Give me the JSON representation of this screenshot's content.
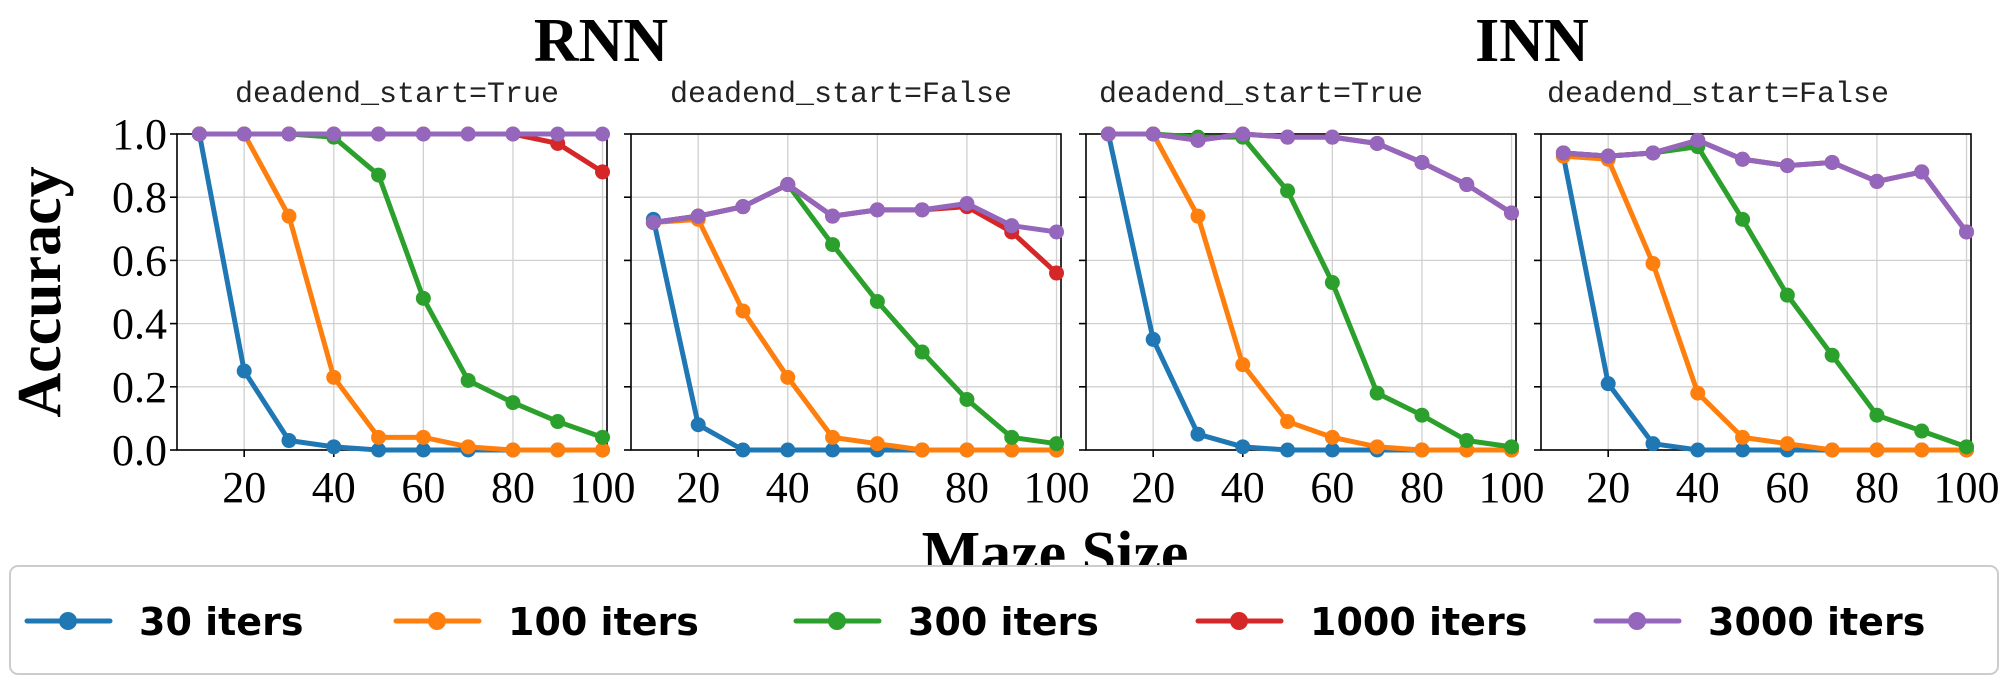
{
  "figure": {
    "group_titles": [
      "RNN",
      "INN"
    ],
    "xlabel": "Maze Size",
    "ylabel": "Accuracy"
  },
  "chart_data": {
    "type": "line",
    "x": [
      10,
      20,
      30,
      40,
      50,
      60,
      70,
      80,
      90,
      100
    ],
    "xticks": [
      20,
      40,
      60,
      80,
      100
    ],
    "yticks": [
      "0.0",
      "0.2",
      "0.4",
      "0.6",
      "0.8",
      "1.0"
    ],
    "xlim": [
      5,
      101
    ],
    "ylim": [
      0,
      1
    ],
    "grid": true,
    "legend_position": "bottom",
    "series_styles": [
      {
        "name": "30 iters",
        "color": "#1f77b4"
      },
      {
        "name": "100 iters",
        "color": "#ff7f0e"
      },
      {
        "name": "300 iters",
        "color": "#2ca02c"
      },
      {
        "name": "1000 iters",
        "color": "#d62728"
      },
      {
        "name": "3000 iters",
        "color": "#9467bd"
      }
    ],
    "panels": [
      {
        "group": "RNN",
        "title": "deadend_start=True",
        "series": [
          {
            "name": "30 iters",
            "values": [
              1.0,
              0.25,
              0.03,
              0.01,
              0.0,
              0.0,
              0.0,
              0.0,
              0.0,
              0.0
            ]
          },
          {
            "name": "100 iters",
            "values": [
              1.0,
              1.0,
              0.74,
              0.23,
              0.04,
              0.04,
              0.01,
              0.0,
              0.0,
              0.0
            ]
          },
          {
            "name": "300 iters",
            "values": [
              1.0,
              1.0,
              1.0,
              0.99,
              0.87,
              0.48,
              0.22,
              0.15,
              0.09,
              0.04
            ]
          },
          {
            "name": "1000 iters",
            "values": [
              1.0,
              1.0,
              1.0,
              1.0,
              1.0,
              1.0,
              1.0,
              1.0,
              0.97,
              0.88
            ]
          },
          {
            "name": "3000 iters",
            "values": [
              1.0,
              1.0,
              1.0,
              1.0,
              1.0,
              1.0,
              1.0,
              1.0,
              1.0,
              1.0
            ]
          }
        ]
      },
      {
        "group": "RNN",
        "title": "deadend_start=False",
        "series": [
          {
            "name": "30 iters",
            "values": [
              0.73,
              0.08,
              0.0,
              0.0,
              0.0,
              0.0,
              0.0,
              0.0,
              0.0,
              0.0
            ]
          },
          {
            "name": "100 iters",
            "values": [
              0.72,
              0.73,
              0.44,
              0.23,
              0.04,
              0.02,
              0.0,
              0.0,
              0.0,
              0.0
            ]
          },
          {
            "name": "300 iters",
            "values": [
              0.72,
              0.74,
              0.77,
              0.84,
              0.65,
              0.47,
              0.31,
              0.16,
              0.04,
              0.02
            ]
          },
          {
            "name": "1000 iters",
            "values": [
              0.72,
              0.74,
              0.77,
              0.84,
              0.74,
              0.76,
              0.76,
              0.77,
              0.69,
              0.56
            ]
          },
          {
            "name": "3000 iters",
            "values": [
              0.72,
              0.74,
              0.77,
              0.84,
              0.74,
              0.76,
              0.76,
              0.78,
              0.71,
              0.69
            ]
          }
        ]
      },
      {
        "group": "INN",
        "title": "deadend_start=True",
        "series": [
          {
            "name": "30 iters",
            "values": [
              1.0,
              0.35,
              0.05,
              0.01,
              0.0,
              0.0,
              0.0,
              0.0,
              0.0,
              0.0
            ]
          },
          {
            "name": "100 iters",
            "values": [
              1.0,
              1.0,
              0.74,
              0.27,
              0.09,
              0.04,
              0.01,
              0.0,
              0.0,
              0.0
            ]
          },
          {
            "name": "300 iters",
            "values": [
              1.0,
              1.0,
              0.99,
              0.99,
              0.82,
              0.53,
              0.18,
              0.11,
              0.03,
              0.01
            ]
          },
          {
            "name": "1000 iters",
            "values": [
              1.0,
              1.0,
              0.98,
              1.0,
              0.99,
              0.99,
              0.97,
              0.91,
              0.84,
              0.75
            ]
          },
          {
            "name": "3000 iters",
            "values": [
              1.0,
              1.0,
              0.98,
              1.0,
              0.99,
              0.99,
              0.97,
              0.91,
              0.84,
              0.75
            ]
          }
        ]
      },
      {
        "group": "INN",
        "title": "deadend_start=False",
        "series": [
          {
            "name": "30 iters",
            "values": [
              0.93,
              0.21,
              0.02,
              0.0,
              0.0,
              0.0,
              0.0,
              0.0,
              0.0,
              0.0
            ]
          },
          {
            "name": "100 iters",
            "values": [
              0.93,
              0.92,
              0.59,
              0.18,
              0.04,
              0.02,
              0.0,
              0.0,
              0.0,
              0.0
            ]
          },
          {
            "name": "300 iters",
            "values": [
              0.94,
              0.93,
              0.94,
              0.96,
              0.73,
              0.49,
              0.3,
              0.11,
              0.06,
              0.01
            ]
          },
          {
            "name": "1000 iters",
            "values": [
              0.94,
              0.93,
              0.94,
              0.98,
              0.92,
              0.9,
              0.91,
              0.85,
              0.88,
              0.69
            ]
          },
          {
            "name": "3000 iters",
            "values": [
              0.94,
              0.93,
              0.94,
              0.98,
              0.92,
              0.9,
              0.91,
              0.85,
              0.88,
              0.69
            ]
          }
        ]
      }
    ]
  }
}
